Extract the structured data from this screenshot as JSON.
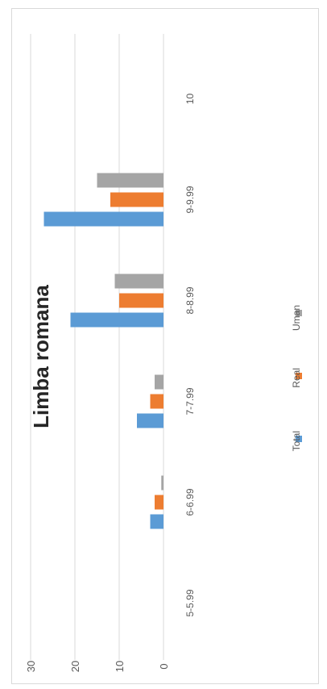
{
  "chart_data": {
    "type": "bar",
    "orientation": "rotated-90",
    "title": "Limba romana",
    "categories": [
      "5-5.99",
      "6-6.99",
      "7-7.99",
      "8-8.99",
      "9-9.99",
      "10"
    ],
    "series": [
      {
        "name": "Total",
        "values": [
          0,
          3,
          6,
          21,
          27,
          0
        ],
        "color": "#5b9bd5"
      },
      {
        "name": "Real",
        "values": [
          0,
          2,
          3,
          10,
          12,
          0
        ],
        "color": "#ed7d31"
      },
      {
        "name": "Uman",
        "values": [
          0,
          0.5,
          2,
          11,
          15,
          0
        ],
        "color": "#a5a5a5"
      }
    ],
    "ylim": [
      0,
      30
    ],
    "yticks": [
      "0",
      "10",
      "20",
      "30"
    ],
    "grid": true,
    "legend": "bottom"
  }
}
